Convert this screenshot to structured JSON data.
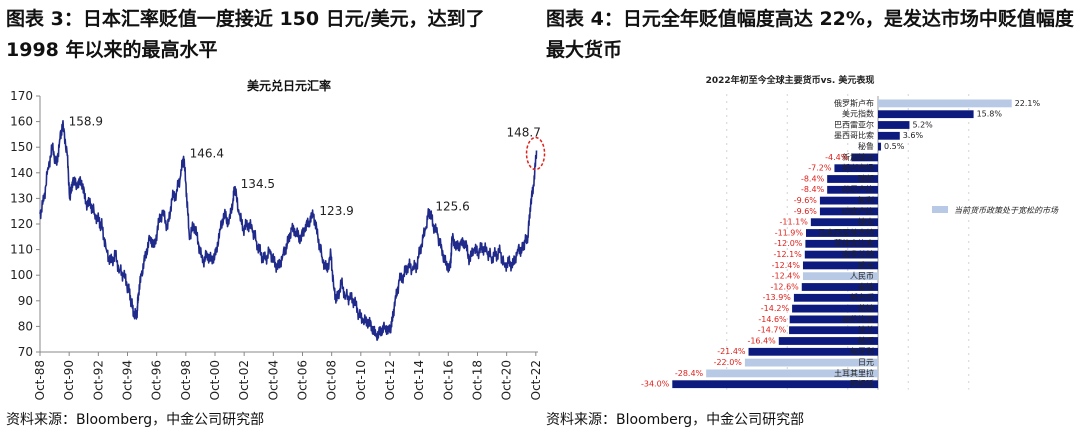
{
  "left": {
    "figure_title": "图表 3：日本汇率贬值一度接近 150 日元/美元，达到了1998 年以来的最高水平",
    "source": "资料来源：Bloomberg，中金公司研究部"
  },
  "right": {
    "figure_title": "图表 4：日元全年贬值幅度高达 22%，是发达市场中贬值幅度最大货币",
    "source": "资料来源：Bloomberg，中金公司研究部"
  },
  "chart_data": [
    {
      "type": "line",
      "title": "美元兑日元汇率",
      "ylim": [
        70,
        170
      ],
      "yticks": [
        70,
        80,
        90,
        100,
        110,
        120,
        130,
        140,
        150,
        160,
        170
      ],
      "xlim": [
        1988.75,
        2022.9
      ],
      "xticks": [
        "Oct-88",
        "Oct-90",
        "Oct-92",
        "Oct-94",
        "Oct-96",
        "Oct-98",
        "Oct-00",
        "Oct-02",
        "Oct-04",
        "Oct-06",
        "Oct-08",
        "Oct-10",
        "Oct-12",
        "Oct-14",
        "Oct-16",
        "Oct-18",
        "Oct-20",
        "Oct-22"
      ],
      "color": "#1f2a8a",
      "x": [
        1988.75,
        1989.0,
        1989.3,
        1989.6,
        1989.9,
        1990.1,
        1990.3,
        1990.6,
        1990.8,
        1991.0,
        1991.3,
        1991.6,
        1991.9,
        1992.2,
        1992.5,
        1992.8,
        1993.0,
        1993.3,
        1993.6,
        1993.9,
        1994.2,
        1994.5,
        1994.8,
        1995.0,
        1995.2,
        1995.4,
        1995.5,
        1995.7,
        1996.0,
        1996.3,
        1996.6,
        1996.9,
        1997.2,
        1997.5,
        1997.8,
        1998.1,
        1998.4,
        1998.6,
        1998.8,
        1999.0,
        1999.3,
        1999.6,
        1999.9,
        2000.2,
        2000.5,
        2000.8,
        2001.1,
        2001.4,
        2001.7,
        2002.0,
        2002.1,
        2002.4,
        2002.7,
        2003.0,
        2003.3,
        2003.6,
        2003.9,
        2004.2,
        2004.5,
        2004.8,
        2005.1,
        2005.4,
        2005.7,
        2006.0,
        2006.3,
        2006.6,
        2006.9,
        2007.2,
        2007.5,
        2007.8,
        2008.1,
        2008.4,
        2008.7,
        2008.9,
        2009.1,
        2009.4,
        2009.7,
        2010.0,
        2010.3,
        2010.6,
        2010.9,
        2011.2,
        2011.5,
        2011.8,
        2012.1,
        2012.4,
        2012.7,
        2012.9,
        2013.1,
        2013.4,
        2013.7,
        2014.0,
        2014.3,
        2014.6,
        2014.9,
        2015.2,
        2015.45,
        2015.7,
        2016.0,
        2016.3,
        2016.6,
        2016.9,
        2017.0,
        2017.3,
        2017.6,
        2017.9,
        2018.2,
        2018.5,
        2018.8,
        2019.1,
        2019.4,
        2019.7,
        2020.0,
        2020.3,
        2020.6,
        2020.9,
        2021.2,
        2021.5,
        2021.8,
        2022.0,
        2022.2,
        2022.4,
        2022.6,
        2022.8
      ],
      "y": [
        124,
        129,
        142,
        150,
        143,
        153,
        158.9,
        148,
        130,
        137,
        135,
        137,
        128,
        128,
        124,
        121,
        119,
        110,
        105,
        108,
        102,
        100,
        95,
        90,
        84,
        85,
        93,
        100,
        108,
        115,
        111,
        121,
        125,
        118,
        130,
        132,
        139,
        146.4,
        132,
        114,
        120,
        113,
        105,
        108,
        106,
        108,
        118,
        124,
        120,
        130,
        134.5,
        124,
        118,
        120,
        118,
        113,
        108,
        106,
        110,
        105,
        103,
        108,
        112,
        118,
        117,
        114,
        118,
        121,
        123.9,
        115,
        107,
        102,
        108,
        95,
        90,
        97,
        92,
        91,
        90,
        85,
        82,
        82,
        80,
        76,
        78,
        80,
        78,
        82,
        90,
        98,
        100,
        104,
        102,
        104,
        112,
        118,
        125.6,
        120,
        116,
        110,
        104,
        103,
        115,
        111,
        112,
        113,
        106,
        110,
        109,
        111,
        109,
        107,
        108,
        109,
        104,
        105,
        104,
        110,
        110,
        113,
        115,
        128,
        135,
        148.7
      ],
      "annotations": [
        {
          "x": 1990.3,
          "y": 158.9,
          "label": "158.9"
        },
        {
          "x": 1998.6,
          "y": 146.4,
          "label": "146.4"
        },
        {
          "x": 2002.1,
          "y": 134.5,
          "label": "134.5"
        },
        {
          "x": 2007.5,
          "y": 123.9,
          "label": "123.9"
        },
        {
          "x": 2015.45,
          "y": 125.6,
          "label": "125.6"
        },
        {
          "x": 2022.8,
          "y": 148.7,
          "label": "148.7"
        }
      ]
    },
    {
      "type": "bar",
      "orientation": "horizontal",
      "title": "2022年初至今全球主要货币vs. 美元表现",
      "xlim": [
        -35,
        25
      ],
      "categories": [
        "俄罗斯卢布",
        "美元指数",
        "巴西雷亚尔",
        "墨西哥比索",
        "秘鲁",
        "新加坡元",
        "新兴市场",
        "瑞郎",
        "印尼卢比",
        "智利",
        "印度卢比",
        "捷克",
        "马来西亚林吉特",
        "菲律宾比索",
        "南非兰特",
        "欧元",
        "人民币",
        "泰铢",
        "新台币",
        "英镑",
        "哥伦比亚",
        "波兰",
        "韩币",
        "匈牙利",
        "日元",
        "土耳其里拉",
        "阿根廷"
      ],
      "values": [
        22.1,
        15.8,
        5.2,
        3.6,
        0.5,
        -4.4,
        -7.2,
        -8.4,
        -8.4,
        -9.6,
        -9.6,
        -11.1,
        -11.9,
        -12.0,
        -12.1,
        -12.4,
        -12.4,
        -12.6,
        -13.9,
        -14.2,
        -14.6,
        -14.7,
        -16.4,
        -21.4,
        -22.0,
        -28.4,
        -34.0
      ],
      "value_labels": [
        "22.1%",
        "15.8%",
        "5.2%",
        "3.6%",
        "0.5%",
        "-4.4%",
        "-7.2%",
        "-8.4%",
        "-8.4%",
        "-9.6%",
        "-9.6%",
        "-11.1%",
        "-11.9%",
        "-12.0%",
        "-12.1%",
        "-12.4%",
        "-12.4%",
        "-12.6%",
        "-13.9%",
        "-14.2%",
        "-14.6%",
        "-14.7%",
        "-16.4%",
        "-21.4%",
        "-22.0%",
        "-28.4%",
        "-34.0%"
      ],
      "highlighted": [
        "俄罗斯卢布",
        "人民币",
        "日元",
        "土耳其里拉"
      ],
      "colors": {
        "default": "#0d1a7e",
        "highlight": "#b7c9e4",
        "negative_label": "#e0201b"
      },
      "legend": {
        "label": "当前货币政策处于宽松的市场",
        "placement": "right"
      }
    }
  ]
}
